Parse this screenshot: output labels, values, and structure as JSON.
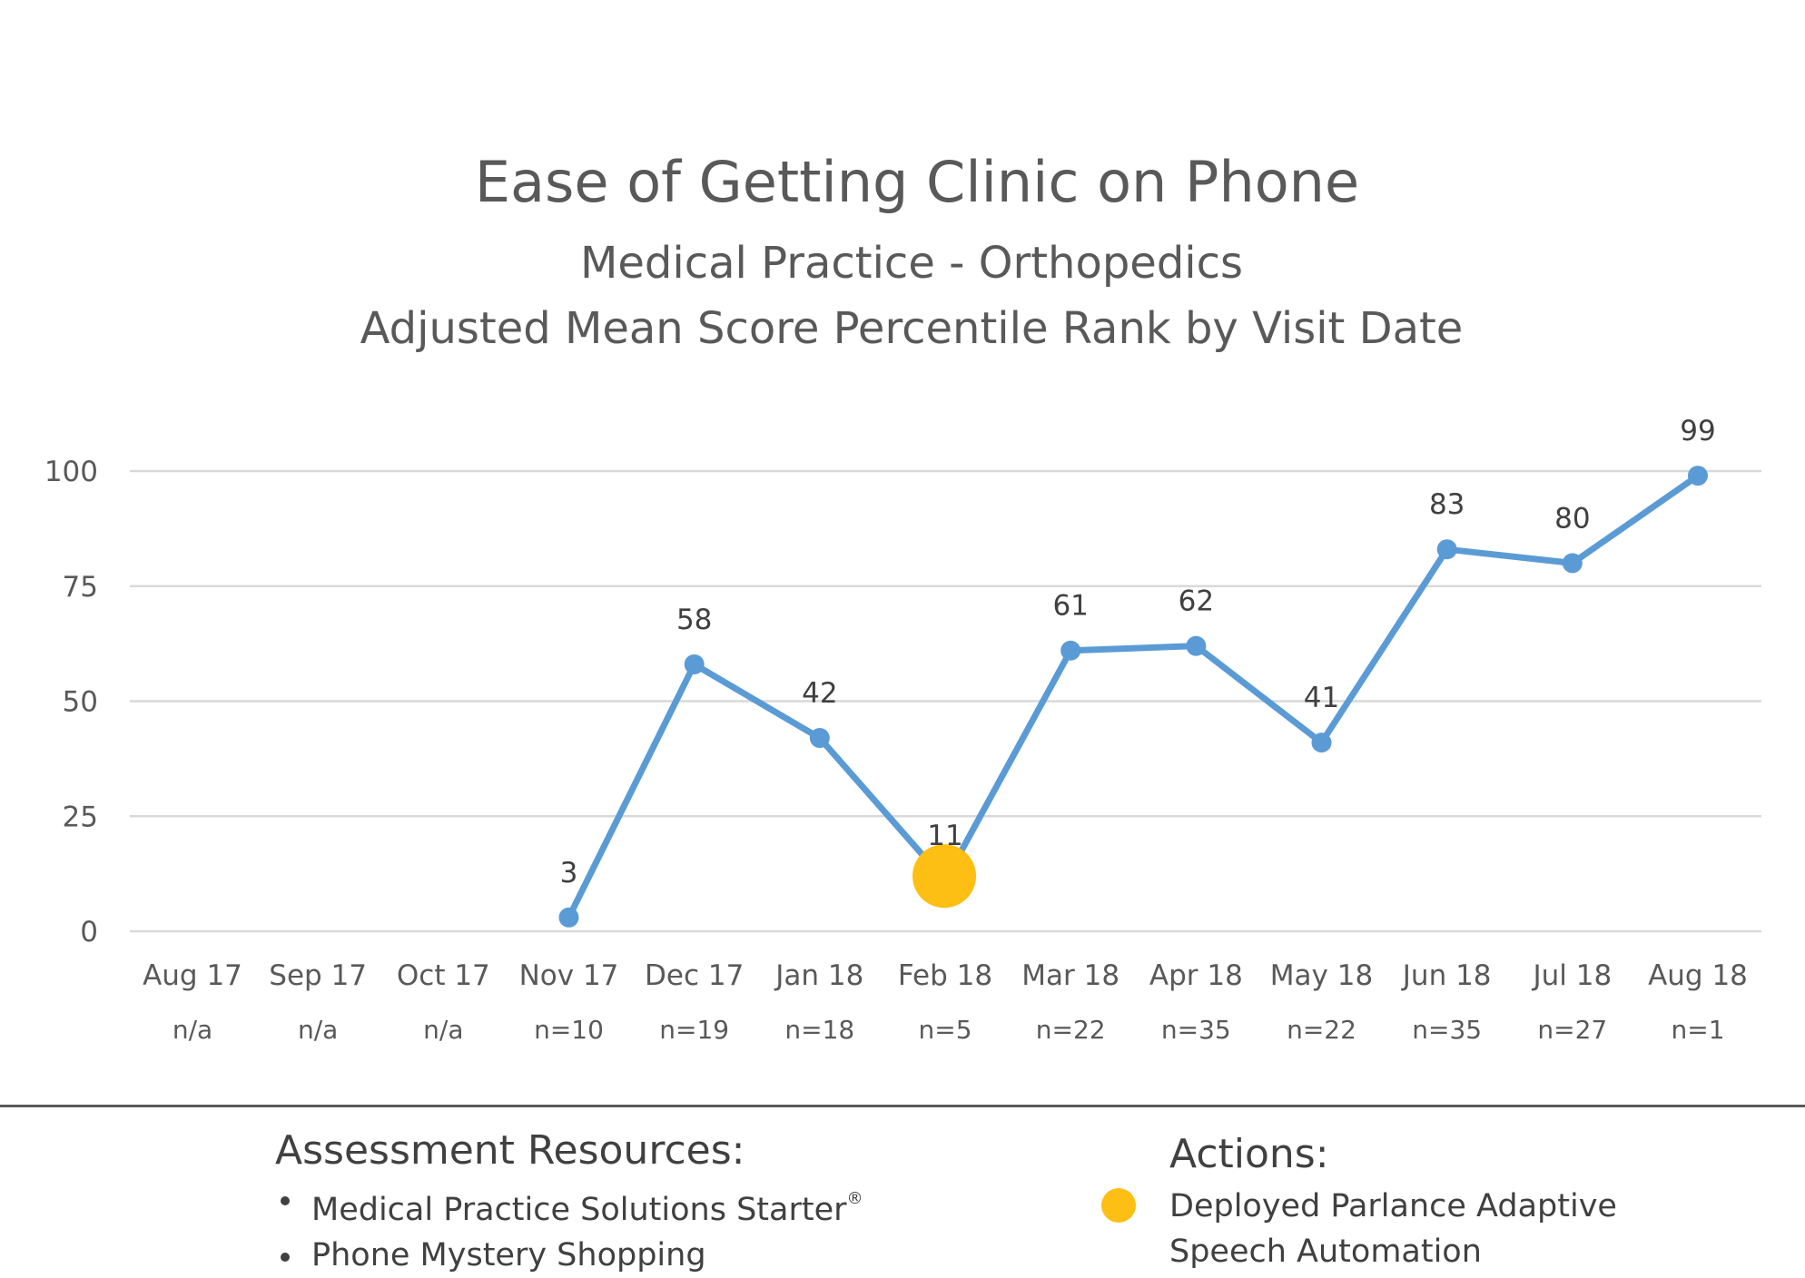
{
  "colors": {
    "line": "#5b9bd5",
    "action_marker": "#fdbf13",
    "text": "#595959",
    "grid": "#d9d9d9"
  },
  "chart_data": {
    "type": "line",
    "title": "Ease of Getting Clinic on Phone",
    "subtitle_lines": [
      "Medical Practice - Orthopedics",
      "Adjusted Mean Score Percentile Rank by Visit Date"
    ],
    "categories": [
      "Aug 17",
      "Sep 17",
      "Oct 17",
      "Nov 17",
      "Dec 17",
      "Jan 18",
      "Feb 18",
      "Mar 18",
      "Apr 18",
      "May 18",
      "Jun 18",
      "Jul 18",
      "Aug 18"
    ],
    "sample_sizes": [
      "n/a",
      "n/a",
      "n/a",
      "n=10",
      "n=19",
      "n=18",
      "n=5",
      "n=22",
      "n=35",
      "n=22",
      "n=35",
      "n=27",
      "n=1"
    ],
    "series": [
      {
        "values": [
          null,
          null,
          null,
          3,
          58,
          42,
          11,
          61,
          62,
          41,
          83,
          80,
          99
        ]
      }
    ],
    "yticks": [
      0,
      25,
      50,
      75,
      100
    ],
    "ylim": [
      0,
      100
    ],
    "grid": true,
    "action_marker": {
      "category": "Feb 18",
      "value": 12
    }
  },
  "assessment_resources": {
    "heading": "Assessment Resources:",
    "items": [
      {
        "text": "Medical Practice Solutions Starter",
        "sup": "®"
      },
      {
        "text": "Phone Mystery Shopping",
        "sup": ""
      }
    ]
  },
  "actions": {
    "heading": "Actions:",
    "items": [
      "Deployed Parlance Adaptive",
      "Speech Automation"
    ]
  }
}
